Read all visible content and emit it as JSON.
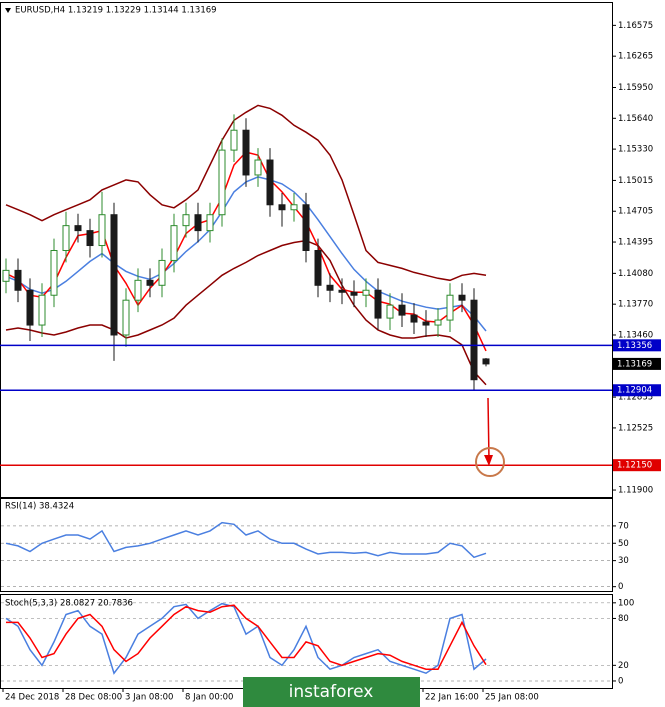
{
  "chart_data": [
    {
      "type": "candlestick",
      "title": "EURUSD,H4  1.13219 1.13229 1.13144 1.13169",
      "categories": [
        "24 Dec 2018",
        null,
        null,
        null,
        null,
        "28 Dec 08:00",
        null,
        null,
        null,
        null,
        "3 Jan 08:00",
        null,
        null,
        null,
        null,
        "8 Jan 00:00",
        null,
        null,
        null,
        null,
        null,
        null,
        null,
        null,
        null,
        null,
        null,
        null,
        null,
        null,
        null,
        null,
        null,
        null,
        null,
        "22 Jan 16:00",
        null,
        null,
        null,
        null,
        "25 Jan 08:00"
      ],
      "open": [
        1.14,
        1.1411,
        1.1391,
        1.1356,
        1.1386,
        1.1431,
        1.1456,
        1.1451,
        1.1436,
        1.1467,
        1.1346,
        1.1381,
        1.1401,
        1.1396,
        1.1421,
        1.1456,
        1.1467,
        1.1451,
        1.1467,
        1.1532,
        1.1552,
        1.1507,
        1.1522,
        1.1477,
        1.1472,
        1.1477,
        1.1431,
        1.1396,
        1.1391,
        1.1389,
        1.1386,
        1.1391,
        1.1363,
        1.1376,
        1.1366,
        1.1359,
        1.1356,
        1.1361,
        1.1386,
        1.1381,
        1.13219
      ],
      "high": [
        1.1423,
        1.1423,
        1.1403,
        1.1398,
        1.1443,
        1.147,
        1.1468,
        1.1463,
        1.149,
        1.1479,
        1.1393,
        1.1413,
        1.1413,
        1.1433,
        1.1468,
        1.1479,
        1.1479,
        1.1479,
        1.1544,
        1.1568,
        1.1564,
        1.1534,
        1.1534,
        1.1489,
        1.1489,
        1.1489,
        1.1443,
        1.1408,
        1.1403,
        1.1401,
        1.1403,
        1.1403,
        1.1388,
        1.1388,
        1.1378,
        1.1371,
        1.1373,
        1.1398,
        1.1398,
        1.1393,
        1.13229
      ],
      "low": [
        1.1388,
        1.1379,
        1.134,
        1.1344,
        1.1374,
        1.1419,
        1.1439,
        1.1424,
        1.1424,
        1.132,
        1.1334,
        1.1369,
        1.1384,
        1.1384,
        1.1409,
        1.1444,
        1.1439,
        1.1439,
        1.1455,
        1.152,
        1.1495,
        1.1495,
        1.1465,
        1.1455,
        1.146,
        1.1419,
        1.1384,
        1.1379,
        1.1377,
        1.1374,
        1.1374,
        1.1351,
        1.1351,
        1.1354,
        1.1347,
        1.1344,
        1.1344,
        1.1349,
        1.1369,
        1.1291,
        1.13144
      ],
      "close": [
        1.1411,
        1.1391,
        1.1356,
        1.1386,
        1.1431,
        1.1456,
        1.1451,
        1.1436,
        1.1467,
        1.1346,
        1.1381,
        1.1401,
        1.1396,
        1.1421,
        1.1456,
        1.1467,
        1.1451,
        1.1467,
        1.1532,
        1.1552,
        1.1507,
        1.1522,
        1.1477,
        1.1472,
        1.1477,
        1.1431,
        1.1396,
        1.1391,
        1.1389,
        1.1386,
        1.1391,
        1.1363,
        1.1376,
        1.1366,
        1.1359,
        1.1356,
        1.1361,
        1.1386,
        1.1381,
        1.1301,
        1.13169
      ],
      "up_color": "#2e8b2e",
      "down_color": "#1a1a1a",
      "lines": [
        {
          "color": "#8b0000",
          "values": [
            1.1477,
            1.1472,
            1.1467,
            1.1461,
            1.1467,
            1.1472,
            1.1477,
            1.1482,
            1.1492,
            1.1497,
            1.1502,
            1.15,
            1.1487,
            1.1477,
            1.1474,
            1.1482,
            1.1492,
            1.1517,
            1.1542,
            1.1562,
            1.157,
            1.1577,
            1.1574,
            1.1567,
            1.1557,
            1.155,
            1.1542,
            1.1527,
            1.1502,
            1.1467,
            1.1431,
            1.1419,
            1.1416,
            1.1413,
            1.1409,
            1.1406,
            1.1403,
            1.1401,
            1.1406,
            1.1408,
            1.1406
          ]
        },
        {
          "color": "#8b0000",
          "values": [
            1.1351,
            1.1353,
            1.1351,
            1.1348,
            1.1346,
            1.1349,
            1.1353,
            1.1356,
            1.1356,
            1.1351,
            1.1343,
            1.1346,
            1.1351,
            1.1356,
            1.1363,
            1.1376,
            1.1386,
            1.1396,
            1.1406,
            1.1413,
            1.1419,
            1.1426,
            1.1431,
            1.1436,
            1.1439,
            1.1441,
            1.1436,
            1.1421,
            1.1396,
            1.1376,
            1.1361,
            1.1351,
            1.1346,
            1.1343,
            1.1343,
            1.1345,
            1.1346,
            1.1344,
            1.1336,
            1.1309,
            1.1296
          ]
        },
        {
          "color": "#4a7fe0",
          "values": [
            1.1405,
            1.14,
            1.1392,
            1.1388,
            1.1392,
            1.14,
            1.141,
            1.142,
            1.1428,
            1.1418,
            1.141,
            1.1405,
            1.1402,
            1.1408,
            1.1418,
            1.143,
            1.144,
            1.1452,
            1.147,
            1.149,
            1.15,
            1.1505,
            1.1502,
            1.1498,
            1.149,
            1.1478,
            1.1462,
            1.1445,
            1.1428,
            1.1412,
            1.14,
            1.139,
            1.1385,
            1.138,
            1.1377,
            1.1374,
            1.1372,
            1.1374,
            1.1376,
            1.1365,
            1.135
          ]
        },
        {
          "color": "#ff0000",
          "values": [
            1.1408,
            1.1402,
            1.1386,
            1.1384,
            1.1398,
            1.1424,
            1.1446,
            1.1448,
            1.1451,
            1.1416,
            1.1398,
            1.1376,
            1.1393,
            1.1406,
            1.1424,
            1.1448,
            1.1458,
            1.1462,
            1.1484,
            1.1517,
            1.153,
            1.1527,
            1.1502,
            1.149,
            1.1475,
            1.146,
            1.1435,
            1.1406,
            1.1392,
            1.1389,
            1.1389,
            1.138,
            1.1377,
            1.1368,
            1.1367,
            1.136,
            1.1359,
            1.1368,
            1.1376,
            1.1356,
            1.133
          ]
        }
      ],
      "levels": [
        {
          "value": 1.13356,
          "color": "#0000c8"
        },
        {
          "value": 1.12904,
          "color": "#0000c8"
        },
        {
          "value": 1.1215,
          "label": "1.12150",
          "color": "#e00000"
        }
      ],
      "ylim": [
        1.1183,
        1.168
      ],
      "yticks": [
        1.16575,
        1.16265,
        {
          "value": 1.1595,
          "label": "1.15950"
        },
        {
          "value": 1.1564,
          "label": "1.15640"
        },
        {
          "value": 1.1533,
          "label": "1.15330"
        },
        1.15015,
        1.14705,
        1.14395,
        {
          "value": 1.1408,
          "label": "1.14080"
        },
        {
          "value": 1.1377,
          "label": "1.13770"
        },
        {
          "value": 1.1346,
          "label": "1.13460"
        },
        1.12835,
        1.12525,
        {
          "value": 1.119,
          "label": "1.11900"
        }
      ],
      "watermark": "instaforex"
    },
    {
      "type": "line",
      "title": "RSI(14) 38.4324",
      "series": [
        {
          "color": "#4a7fe0",
          "values": [
            50,
            47,
            40.5,
            50,
            54.8,
            59.5,
            59.5,
            54.8,
            64.3,
            40.5,
            45.2,
            47,
            50,
            54.8,
            59.5,
            64.3,
            59.5,
            64.3,
            73.8,
            71.9,
            59.5,
            64.3,
            54.8,
            50,
            50,
            43.3,
            37.6,
            39.5,
            39.5,
            38.6,
            39.5,
            35.7,
            39.5,
            37.6,
            37.6,
            37.6,
            39.5,
            50,
            47,
            33.8,
            38.4324
          ]
        }
      ],
      "ylim": [
        -5,
        101
      ],
      "yticks": [
        70,
        50,
        30,
        0
      ],
      "grid": true
    },
    {
      "type": "line",
      "title": "Stoch(5,3,3) 28.0827 20.7836",
      "series": [
        {
          "color": "#4a7fe0",
          "values": [
            80,
            70,
            40,
            20,
            50,
            85,
            90,
            70,
            60,
            10,
            30,
            60,
            70,
            80,
            95,
            98,
            80,
            90,
            99,
            95,
            60,
            70,
            30,
            20,
            40,
            70,
            30,
            15,
            20,
            30,
            35,
            40,
            25,
            20,
            15,
            10,
            20,
            80,
            85,
            15,
            28.0827
          ]
        },
        {
          "color": "#ff0000",
          "values": [
            75,
            75,
            55,
            30,
            35,
            60,
            80,
            85,
            70,
            40,
            25,
            35,
            55,
            70,
            85,
            95,
            90,
            88,
            95,
            97,
            80,
            70,
            50,
            30,
            30,
            50,
            45,
            25,
            20,
            25,
            30,
            35,
            33,
            25,
            20,
            15,
            15,
            45,
            75,
            45,
            20.7836
          ]
        }
      ],
      "ylim": [
        -9,
        110
      ],
      "yticks": [
        100,
        80,
        20,
        0
      ],
      "grid": true
    }
  ]
}
